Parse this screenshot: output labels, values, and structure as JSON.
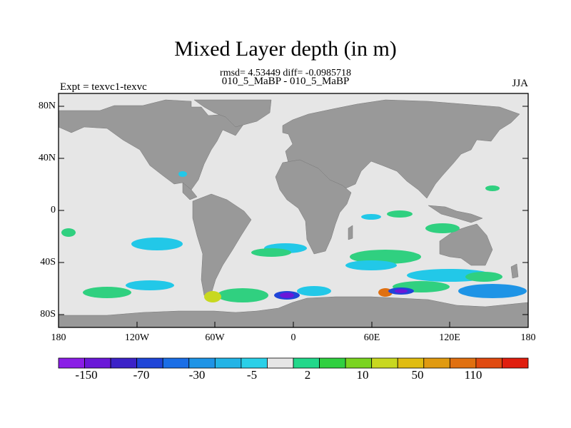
{
  "title": "Mixed Layer depth (in m)",
  "stats": "rmsd= 4.53449 diff= -0.0985718",
  "subtitle": "010_5_MaBP - 010_5_MaBP",
  "left_label": "Expt = texvc1-texvc",
  "right_label": "JJA",
  "lat_ticks": [
    "80N",
    "40N",
    "0",
    "40S",
    "80S"
  ],
  "lon_ticks": [
    "180",
    "120W",
    "60W",
    "0",
    "60E",
    "120E",
    "180"
  ],
  "colorbar": {
    "labels": [
      "-150",
      "-70",
      "-30",
      "-5",
      "2",
      "10",
      "50",
      "110"
    ],
    "colors": [
      "#8a1ee6",
      "#6a18d8",
      "#3c22c8",
      "#1f45d8",
      "#1a6ee6",
      "#1e94e6",
      "#22b4e6",
      "#2ad0e8",
      "#e6e6e6",
      "#22d88a",
      "#30d040",
      "#7ad420",
      "#c8d820",
      "#e0bc10",
      "#e09a10",
      "#e07010",
      "#e04a10",
      "#e01e0e"
    ]
  },
  "colors": {
    "ocean": "#e6e6e6",
    "land": "#999999"
  }
}
